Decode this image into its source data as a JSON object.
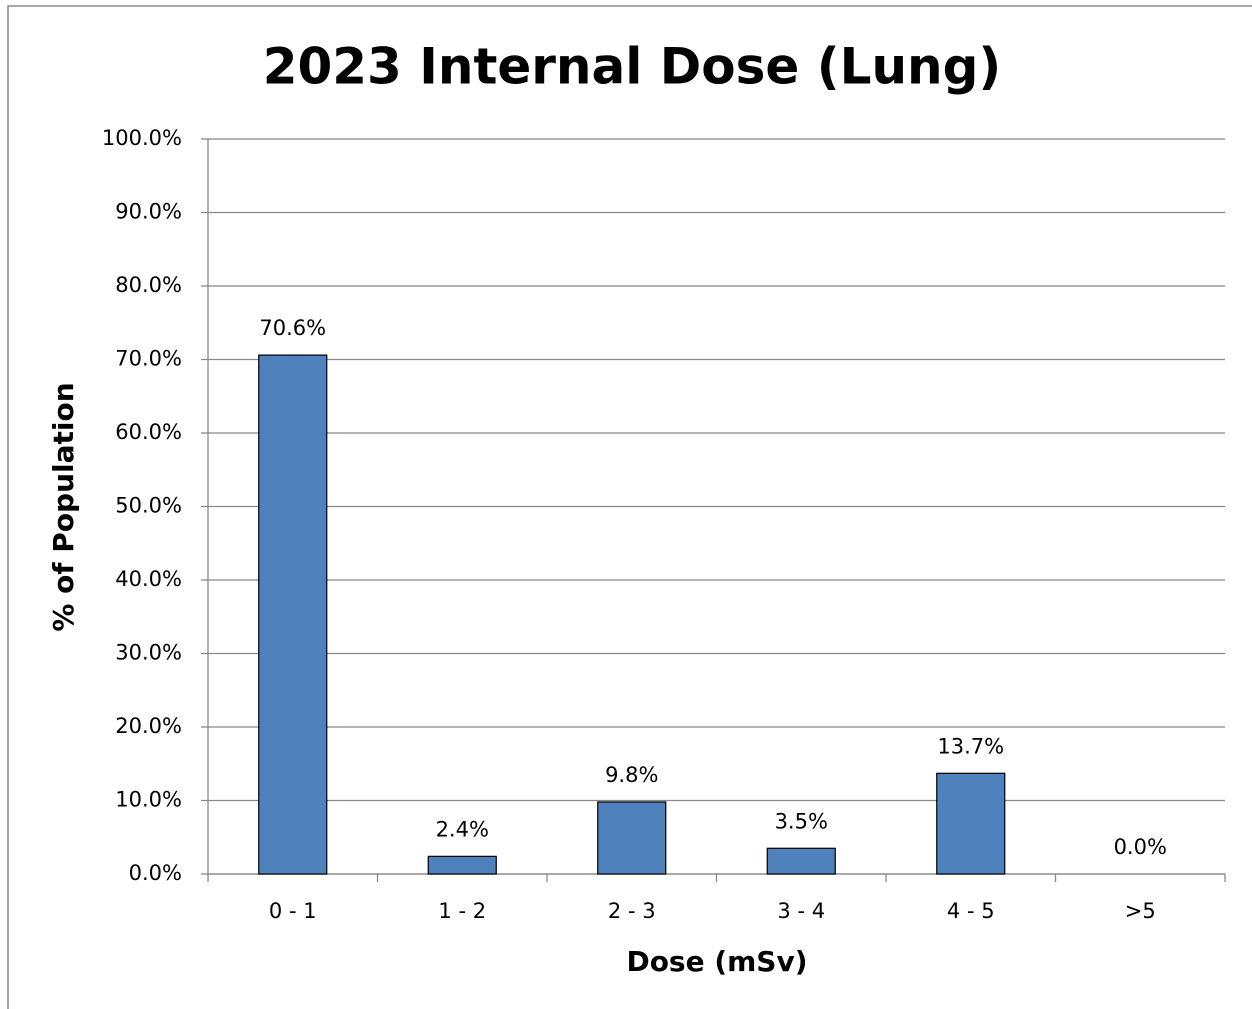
{
  "chart_data": {
    "type": "bar",
    "title": "2023 Internal Dose (Lung)",
    "x_label": "Dose (mSv)",
    "y_label": "% of Population",
    "categories": [
      "0 - 1",
      "1 - 2",
      "2 - 3",
      "3 - 4",
      "4 - 5",
      ">5"
    ],
    "values": [
      70.6,
      2.4,
      9.8,
      3.5,
      13.7,
      0.0
    ],
    "value_labels": [
      "70.6%",
      "2.4%",
      "9.8%",
      "3.5%",
      "13.7%",
      "0.0%"
    ],
    "color": "#4f81bd",
    "ylim": [
      0,
      100
    ],
    "yticks": [
      {
        "value": 0,
        "label": "0.0%"
      },
      {
        "value": 10,
        "label": "10.0%"
      },
      {
        "value": 20,
        "label": "20.0%"
      },
      {
        "value": 30,
        "label": "30.0%"
      },
      {
        "value": 40,
        "label": "40.0%"
      },
      {
        "value": 50,
        "label": "50.0%"
      },
      {
        "value": 60,
        "label": "60.0%"
      },
      {
        "value": 70,
        "label": "70.0%"
      },
      {
        "value": 80,
        "label": "80.0%"
      },
      {
        "value": 90,
        "label": "90.0%"
      },
      {
        "value": 100,
        "label": "100.0%"
      }
    ],
    "grid": true
  }
}
